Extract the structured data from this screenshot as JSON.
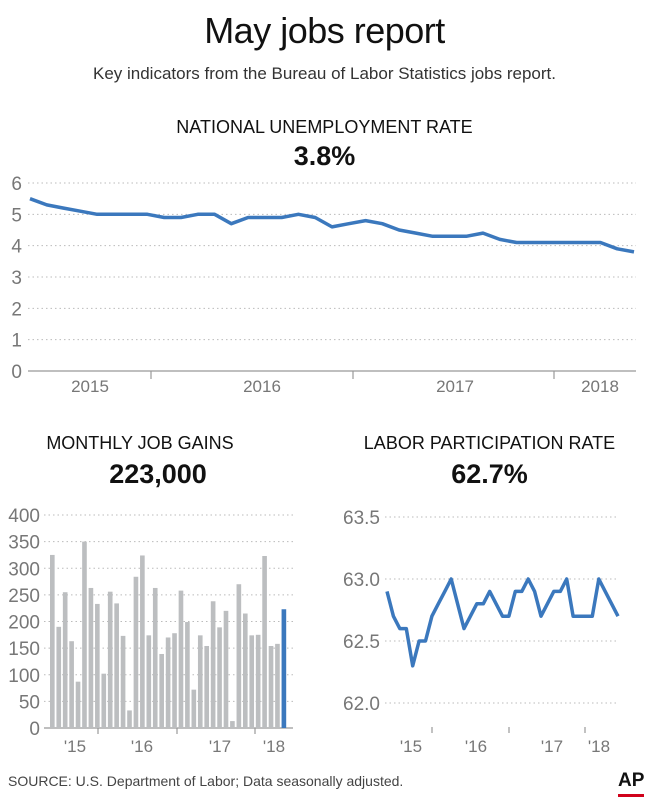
{
  "title": "May jobs report",
  "subtitle": "Key indicators from the Bureau of Labor Statistics jobs report.",
  "source": "SOURCE: U.S. Department of Labor; Data seasonally adjusted.",
  "logo": "AP",
  "colors": {
    "line": "#3b78bd",
    "bar": "#bcbec0",
    "bar_highlight": "#3b78bd",
    "grid": "#bbbbbb",
    "logo_accent": "#d0021b"
  },
  "chart_data": [
    {
      "type": "line",
      "title": "NATIONAL UNEMPLOYMENT RATE",
      "headline": "3.8%",
      "ylim": [
        0,
        6
      ],
      "yticks": [
        "0",
        "1",
        "2",
        "3",
        "4",
        "5",
        "6"
      ],
      "grid": true,
      "xtick_labels": [
        "2015",
        "2016",
        "2017",
        "2018"
      ],
      "values": [
        5.5,
        5.3,
        5.2,
        5.1,
        5.0,
        5.0,
        5.0,
        5.0,
        4.9,
        4.9,
        5.0,
        5.0,
        4.7,
        4.9,
        4.9,
        4.9,
        5.0,
        4.9,
        4.6,
        4.7,
        4.8,
        4.7,
        4.5,
        4.4,
        4.3,
        4.3,
        4.3,
        4.4,
        4.2,
        4.1,
        4.1,
        4.1,
        4.1,
        4.1,
        4.1,
        3.9,
        3.8
      ]
    },
    {
      "type": "bar",
      "title": "MONTHLY JOB GAINS",
      "headline": "223,000",
      "ylim": [
        0,
        400
      ],
      "yticks": [
        "0",
        "50",
        "100",
        "150",
        "200",
        "250",
        "300",
        "350",
        "400"
      ],
      "grid": true,
      "xtick_labels": [
        "'15",
        "'16",
        "'17",
        "'18"
      ],
      "values": [
        325,
        190,
        255,
        163,
        87,
        350,
        263,
        233,
        102,
        256,
        234,
        173,
        33,
        284,
        324,
        174,
        263,
        139,
        170,
        178,
        258,
        199,
        72,
        174,
        154,
        238,
        189,
        220,
        13,
        270,
        215,
        174,
        175,
        323,
        154,
        158,
        223
      ],
      "highlight": "last"
    },
    {
      "type": "line",
      "title": "LABOR PARTICIPATION RATE",
      "headline": "62.7%",
      "ylim": [
        61.8,
        63.5
      ],
      "yticks": [
        "62.0",
        "62.5",
        "63.0",
        "63.5"
      ],
      "grid": true,
      "xtick_labels": [
        "'15",
        "'16",
        "'17",
        "'18"
      ],
      "values": [
        62.9,
        62.7,
        62.6,
        62.6,
        62.3,
        62.5,
        62.5,
        62.7,
        62.8,
        62.9,
        63.0,
        62.8,
        62.6,
        62.7,
        62.8,
        62.8,
        62.9,
        62.8,
        62.7,
        62.7,
        62.9,
        62.9,
        63.0,
        62.9,
        62.7,
        62.8,
        62.9,
        62.9,
        63.0,
        62.7,
        62.7,
        62.7,
        62.7,
        63.0,
        62.9,
        62.8,
        62.7
      ]
    }
  ]
}
